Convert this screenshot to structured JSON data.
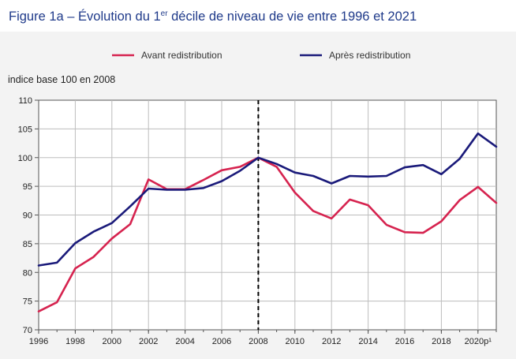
{
  "header": {
    "title_prefix": "Figure 1a – Évolution du 1",
    "title_sup": "er",
    "title_suffix": " décile de niveau de vie entre 1996 et 2021"
  },
  "chart_data": {
    "type": "line",
    "unit_label": "indice base 100 en 2008",
    "x": [
      1996,
      1997,
      1998,
      1999,
      2000,
      2001,
      2002,
      2003,
      2004,
      2005,
      2006,
      2007,
      2008,
      2009,
      2010,
      2011,
      2012,
      2013,
      2014,
      2015,
      2016,
      2017,
      2018,
      2019,
      2020,
      2021
    ],
    "x_ticks": [
      {
        "value": 1996,
        "label": "1996"
      },
      {
        "value": 1998,
        "label": "1998"
      },
      {
        "value": 2000,
        "label": "2000"
      },
      {
        "value": 2002,
        "label": "2002"
      },
      {
        "value": 2004,
        "label": "2004"
      },
      {
        "value": 2006,
        "label": "2006"
      },
      {
        "value": 2008,
        "label": "2008"
      },
      {
        "value": 2010,
        "label": "2010"
      },
      {
        "value": 2012,
        "label": "2012"
      },
      {
        "value": 2014,
        "label": "2014"
      },
      {
        "value": 2016,
        "label": "2016"
      },
      {
        "value": 2018,
        "label": "2018"
      },
      {
        "value": 2020,
        "label": "2020p¹"
      }
    ],
    "y_ticks": [
      70,
      75,
      80,
      85,
      90,
      95,
      100,
      105,
      110
    ],
    "ylim": [
      70,
      110
    ],
    "xlim": [
      1996,
      2021
    ],
    "reference_line_x": 2008,
    "series": [
      {
        "name": "Avant redistribution",
        "color": "#d6234f",
        "values": [
          73.2,
          74.8,
          80.7,
          82.7,
          85.9,
          88.4,
          96.2,
          94.5,
          94.5,
          96.1,
          97.8,
          98.4,
          100.0,
          98.4,
          93.9,
          90.7,
          89.4,
          92.7,
          91.7,
          88.3,
          87.0,
          86.9,
          88.9,
          92.6,
          94.9,
          92.1
        ]
      },
      {
        "name": "Après redistribution",
        "color": "#1a1a7a",
        "values": [
          81.2,
          81.7,
          85.1,
          87.1,
          88.6,
          91.5,
          94.6,
          94.4,
          94.4,
          94.7,
          95.9,
          97.7,
          100.0,
          98.9,
          97.4,
          96.8,
          95.5,
          96.8,
          96.7,
          96.8,
          98.3,
          98.7,
          97.1,
          99.8,
          104.2,
          101.9
        ]
      }
    ],
    "legend_position": "top-center",
    "grid": true
  }
}
